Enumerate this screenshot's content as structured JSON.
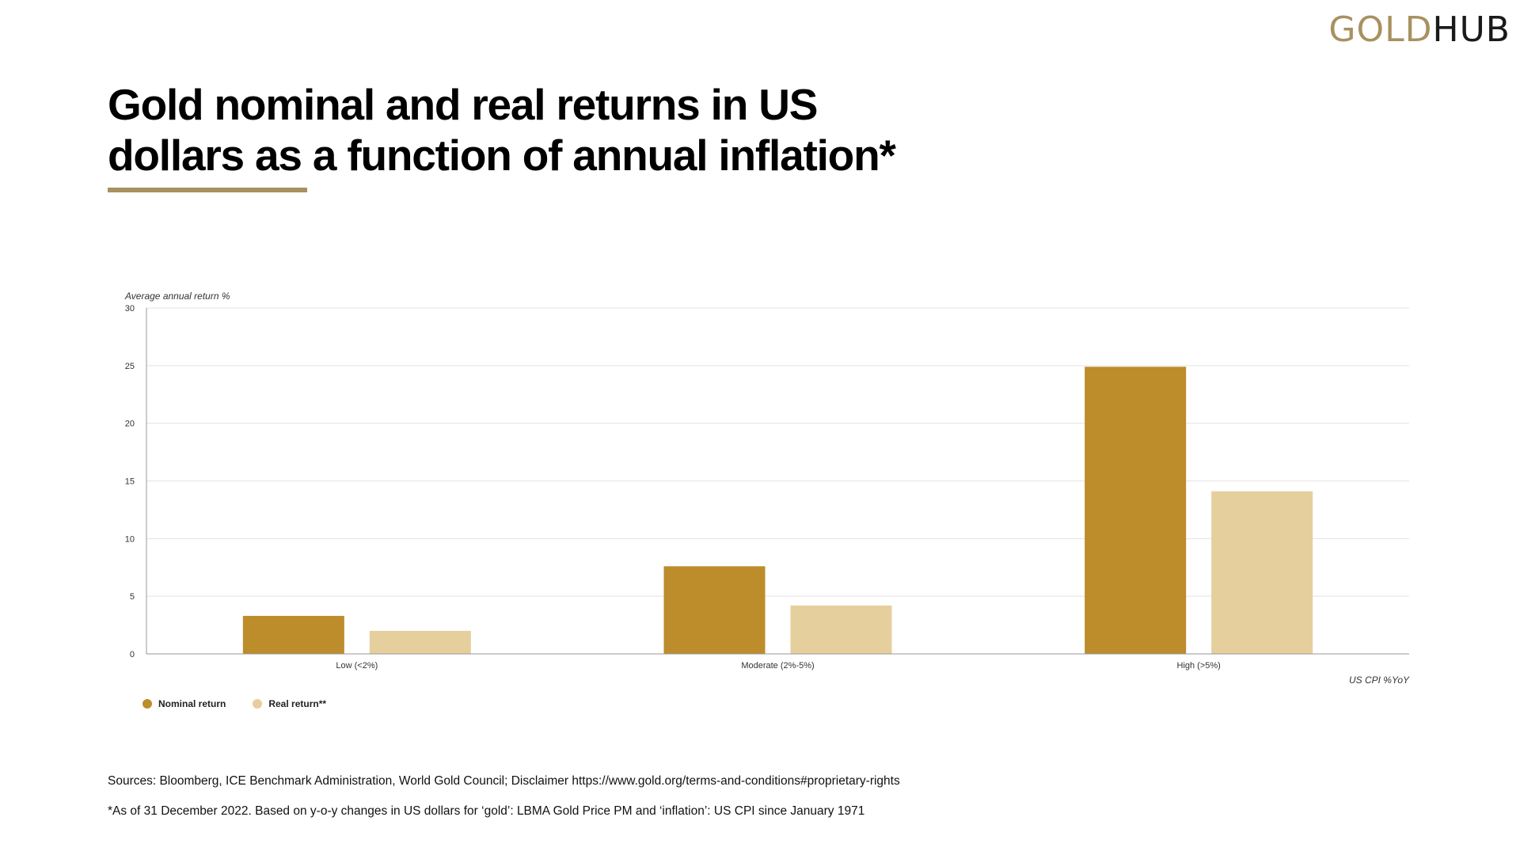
{
  "logo": {
    "part1": "GOLD",
    "part2": "HUB"
  },
  "title_line1": "Gold nominal and real returns in US",
  "title_line2": "dollars as a function of annual inflation*",
  "colors": {
    "accent": "#a89160",
    "nominal": "#bd8c2b",
    "real": "#e5cf9c"
  },
  "chart_data": {
    "type": "bar",
    "ylabel": "Average annual return %",
    "xlabel": "US CPI %YoY",
    "categories": [
      "Low (<2%)",
      "Moderate (2%-5%)",
      "High (>5%)"
    ],
    "series": [
      {
        "name": "Nominal return",
        "values": [
          3.3,
          7.6,
          24.9
        ]
      },
      {
        "name": "Real return**",
        "values": [
          2.0,
          4.2,
          14.1
        ]
      }
    ],
    "ylim": [
      0,
      30
    ],
    "yticks": [
      0,
      5,
      10,
      15,
      20,
      25,
      30
    ],
    "grid": true,
    "legend": "bottom-left"
  },
  "footnotes": {
    "sources": "Sources: Bloomberg, ICE Benchmark Administration, World Gold Council; Disclaimer https://www.gold.org/terms-and-conditions#proprietary-rights",
    "note": "*As of 31 December 2022. Based on y-o-y changes in US dollars for ‘gold’: LBMA Gold Price PM and ‘inflation’: US CPI since January 1971"
  }
}
